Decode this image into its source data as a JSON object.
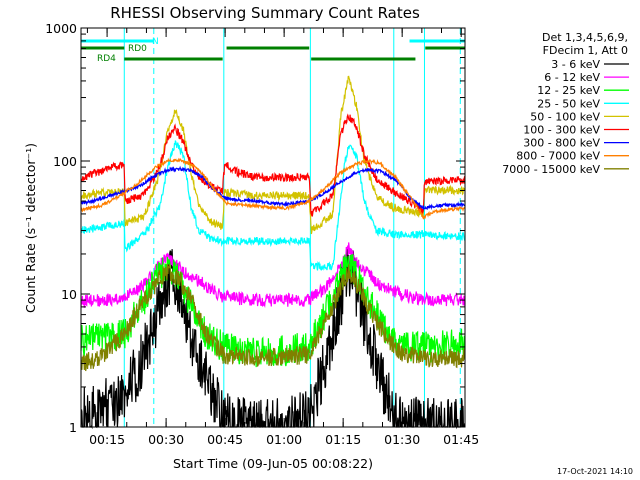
{
  "chart_data": {
    "type": "line",
    "title": "RHESSI Observing Summary Count Rates",
    "xlabel": "Start Time (09-Jun-05 00:08:22)",
    "ylabel": "Count Rate (s⁻¹ detector⁻¹)",
    "y_scale": "log",
    "ylim": [
      1,
      1000
    ],
    "xlim_minutes": [
      0,
      97.6
    ],
    "x_tick_labels": [
      "00:15",
      "00:30",
      "00:45",
      "01:00",
      "01:15",
      "01:30",
      "01:45"
    ],
    "x_tick_minutes": [
      6.63,
      21.63,
      36.63,
      51.63,
      66.63,
      81.63,
      96.63
    ],
    "y_tick_labels": [
      "1",
      "10",
      "100",
      "1000"
    ],
    "y_tick_values": [
      1,
      10,
      100,
      1000
    ],
    "footer_date": "17-Oct-2021 14:10",
    "legend_header": [
      "Det 1,3,4,5,6,9,",
      "FDecim 1, Att 0"
    ],
    "legend_placement": "right",
    "flags": [
      {
        "name": "N",
        "color": "#00ffff",
        "segments": [
          [
            0,
            18.5
          ],
          [
            83.5,
            97.6
          ]
        ],
        "level": 1
      },
      {
        "name": "RD0",
        "color": "#008000",
        "segments": [
          [
            0,
            11
          ],
          [
            37,
            58
          ],
          [
            87.5,
            97.6
          ]
        ],
        "level": 2
      },
      {
        "name": "RD4",
        "color": "#008000",
        "segments": [
          [
            11,
            36
          ],
          [
            58.5,
            85
          ]
        ],
        "level": 3
      }
    ],
    "vertical_lines": [
      {
        "minute": 18.5,
        "color": "#00ffff",
        "style": "dashed"
      },
      {
        "minute": 11,
        "color": "#00ffff",
        "style": "solid"
      },
      {
        "minute": 36.3,
        "color": "#00ffff",
        "style": "solid"
      },
      {
        "minute": 58.3,
        "color": "#00ffff",
        "style": "solid"
      },
      {
        "minute": 79.5,
        "color": "#00ffff",
        "style": "solid"
      },
      {
        "minute": 87.3,
        "color": "#00ffff",
        "style": "solid"
      },
      {
        "minute": 96.4,
        "color": "#00ffff",
        "style": "dashed"
      }
    ],
    "series": [
      {
        "name": "3 - 6 keV",
        "color": "#000000",
        "points": [
          [
            0,
            1.2
          ],
          [
            11,
            1.6
          ],
          [
            15,
            3
          ],
          [
            18,
            5
          ],
          [
            21,
            10
          ],
          [
            23,
            14
          ],
          [
            25,
            10
          ],
          [
            28,
            5
          ],
          [
            33,
            2
          ],
          [
            36,
            1.2
          ],
          [
            42,
            1
          ],
          [
            52,
            1
          ],
          [
            58,
            1.2
          ],
          [
            62,
            3
          ],
          [
            66,
            9
          ],
          [
            68,
            16
          ],
          [
            70,
            11
          ],
          [
            73,
            5
          ],
          [
            77,
            2
          ],
          [
            80,
            1.1
          ],
          [
            88,
            1
          ],
          [
            97.6,
            1
          ]
        ]
      },
      {
        "name": "6 - 12 keV",
        "color": "#ff00ff",
        "points": [
          [
            0,
            8.8
          ],
          [
            11,
            9.2
          ],
          [
            15,
            11
          ],
          [
            19,
            15
          ],
          [
            22,
            19
          ],
          [
            24,
            17
          ],
          [
            27,
            14
          ],
          [
            31,
            12
          ],
          [
            34,
            10.5
          ],
          [
            36,
            9.5
          ],
          [
            45,
            9
          ],
          [
            58,
            9
          ],
          [
            62,
            11
          ],
          [
            66,
            16
          ],
          [
            68,
            22
          ],
          [
            70,
            17
          ],
          [
            74,
            13
          ],
          [
            78,
            11
          ],
          [
            81,
            10
          ],
          [
            88,
            9
          ],
          [
            97.6,
            9
          ]
        ]
      },
      {
        "name": "12 - 25 keV",
        "color": "#00ff00",
        "points": [
          [
            0,
            4.5
          ],
          [
            11,
            5
          ],
          [
            15,
            8
          ],
          [
            19,
            13
          ],
          [
            22,
            16
          ],
          [
            25,
            13
          ],
          [
            28,
            8
          ],
          [
            32,
            5
          ],
          [
            36,
            4
          ],
          [
            45,
            3.5
          ],
          [
            58,
            4
          ],
          [
            62,
            7
          ],
          [
            66,
            13
          ],
          [
            68,
            18
          ],
          [
            70,
            14
          ],
          [
            74,
            8
          ],
          [
            78,
            5
          ],
          [
            82,
            4
          ],
          [
            88,
            4
          ],
          [
            97.6,
            4.2
          ]
        ]
      },
      {
        "name": "25 - 50 keV",
        "color": "#00ffff",
        "points": [
          [
            0,
            30
          ],
          [
            11,
            34
          ],
          [
            11.2,
            22
          ],
          [
            16,
            28
          ],
          [
            20,
            45
          ],
          [
            22,
            90
          ],
          [
            24,
            140
          ],
          [
            26,
            110
          ],
          [
            28,
            45
          ],
          [
            30,
            30
          ],
          [
            33,
            26
          ],
          [
            36,
            25
          ],
          [
            36.5,
            25
          ],
          [
            45,
            25
          ],
          [
            58,
            25
          ],
          [
            58.5,
            16
          ],
          [
            64,
            16
          ],
          [
            67,
            95
          ],
          [
            68,
            130
          ],
          [
            70,
            110
          ],
          [
            72,
            50
          ],
          [
            75,
            30
          ],
          [
            79,
            28
          ],
          [
            87,
            28
          ],
          [
            97.6,
            27
          ]
        ]
      },
      {
        "name": "50 - 100 keV",
        "color": "#d2c200",
        "points": [
          [
            0,
            55
          ],
          [
            11,
            60
          ],
          [
            11.2,
            34
          ],
          [
            16,
            38
          ],
          [
            20,
            80
          ],
          [
            22,
            170
          ],
          [
            24,
            240
          ],
          [
            26,
            170
          ],
          [
            28,
            80
          ],
          [
            30,
            45
          ],
          [
            33,
            35
          ],
          [
            36,
            32
          ],
          [
            36.5,
            58
          ],
          [
            45,
            55
          ],
          [
            58,
            55
          ],
          [
            58.5,
            30
          ],
          [
            64,
            40
          ],
          [
            66,
            220
          ],
          [
            68,
            420
          ],
          [
            70,
            260
          ],
          [
            72,
            100
          ],
          [
            75,
            55
          ],
          [
            79,
            45
          ],
          [
            87,
            40
          ],
          [
            87.3,
            60
          ],
          [
            97.6,
            60
          ]
        ]
      },
      {
        "name": "100 - 300 keV",
        "color": "#ff0000",
        "points": [
          [
            0,
            75
          ],
          [
            11,
            95
          ],
          [
            11.2,
            50
          ],
          [
            16,
            55
          ],
          [
            20,
            90
          ],
          [
            22,
            150
          ],
          [
            24,
            175
          ],
          [
            26,
            140
          ],
          [
            28,
            95
          ],
          [
            30,
            75
          ],
          [
            33,
            65
          ],
          [
            36,
            60
          ],
          [
            36.5,
            95
          ],
          [
            40,
            82
          ],
          [
            45,
            75
          ],
          [
            58,
            75
          ],
          [
            58.5,
            40
          ],
          [
            64,
            55
          ],
          [
            66,
            160
          ],
          [
            68,
            220
          ],
          [
            70,
            180
          ],
          [
            72,
            110
          ],
          [
            75,
            75
          ],
          [
            79,
            60
          ],
          [
            86,
            45
          ],
          [
            87,
            40
          ],
          [
            87.3,
            70
          ],
          [
            97.6,
            72
          ]
        ]
      },
      {
        "name": "300 - 800 keV",
        "color": "#0000ff",
        "points": [
          [
            0,
            48
          ],
          [
            5,
            52
          ],
          [
            10,
            58
          ],
          [
            15,
            65
          ],
          [
            19,
            78
          ],
          [
            22,
            86
          ],
          [
            25,
            87
          ],
          [
            28,
            85
          ],
          [
            31,
            75
          ],
          [
            34,
            60
          ],
          [
            37,
            52
          ],
          [
            44,
            50
          ],
          [
            52,
            47
          ],
          [
            58,
            50
          ],
          [
            62,
            58
          ],
          [
            66,
            70
          ],
          [
            70,
            82
          ],
          [
            73,
            86
          ],
          [
            76,
            84
          ],
          [
            80,
            72
          ],
          [
            84,
            52
          ],
          [
            87,
            44
          ],
          [
            90,
            46
          ],
          [
            97.6,
            47
          ]
        ]
      },
      {
        "name": "800 - 7000 keV",
        "color": "#ff7f00",
        "points": [
          [
            0,
            43
          ],
          [
            5,
            46
          ],
          [
            10,
            55
          ],
          [
            15,
            70
          ],
          [
            19,
            90
          ],
          [
            22,
            100
          ],
          [
            25,
            102
          ],
          [
            28,
            95
          ],
          [
            31,
            80
          ],
          [
            34,
            60
          ],
          [
            37,
            48
          ],
          [
            44,
            46
          ],
          [
            52,
            44
          ],
          [
            58,
            50
          ],
          [
            62,
            62
          ],
          [
            66,
            82
          ],
          [
            70,
            95
          ],
          [
            73,
            100
          ],
          [
            76,
            96
          ],
          [
            80,
            75
          ],
          [
            84,
            52
          ],
          [
            87,
            38
          ],
          [
            90,
            42
          ],
          [
            97.6,
            44
          ]
        ]
      },
      {
        "name": "7000 - 15000 keV",
        "color": "#808000",
        "points": [
          [
            0,
            3
          ],
          [
            5,
            3.3
          ],
          [
            11,
            5
          ],
          [
            15,
            8
          ],
          [
            19,
            12
          ],
          [
            22,
            15
          ],
          [
            25,
            13
          ],
          [
            28,
            9
          ],
          [
            32,
            5
          ],
          [
            36,
            3.5
          ],
          [
            45,
            3.3
          ],
          [
            58,
            3.5
          ],
          [
            62,
            6
          ],
          [
            66,
            11
          ],
          [
            68,
            15
          ],
          [
            70,
            12
          ],
          [
            74,
            7
          ],
          [
            78,
            4.5
          ],
          [
            82,
            3.5
          ],
          [
            88,
            3.3
          ],
          [
            97.6,
            3.3
          ]
        ]
      }
    ]
  }
}
